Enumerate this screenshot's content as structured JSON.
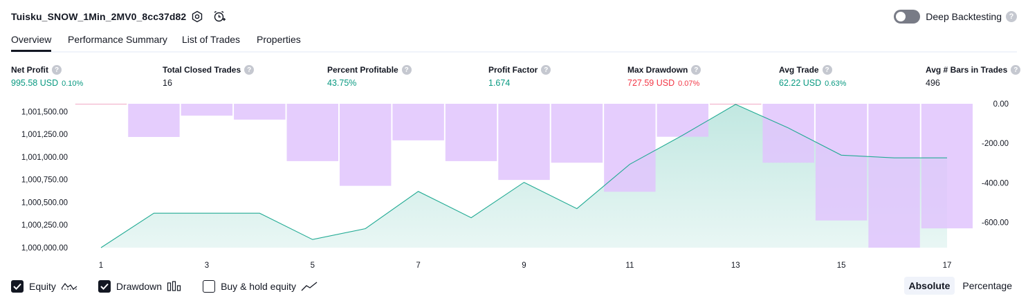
{
  "header": {
    "title": "Tuisku_SNOW_1Min_2MV0_8cc37d82",
    "icons": [
      "settings-icon",
      "alert-add-icon"
    ],
    "deep_backtesting_label": "Deep Backtesting",
    "deep_backtesting_on": false,
    "help_glyph": "?"
  },
  "tabs": [
    {
      "label": "Overview",
      "active": true
    },
    {
      "label": "Performance Summary",
      "active": false
    },
    {
      "label": "List of Trades",
      "active": false
    },
    {
      "label": "Properties",
      "active": false
    }
  ],
  "metrics": [
    {
      "label": "Net Profit",
      "value": "995.58 USD",
      "pct": "0.10%",
      "color": "#089981"
    },
    {
      "label": "Total Closed Trades",
      "value": "16",
      "pct": "",
      "color": "#131722"
    },
    {
      "label": "Percent Profitable",
      "value": "43.75%",
      "pct": "",
      "color": "#089981"
    },
    {
      "label": "Profit Factor",
      "value": "1.674",
      "pct": "",
      "color": "#089981"
    },
    {
      "label": "Max Drawdown",
      "value": "727.59 USD",
      "pct": "0.07%",
      "color": "#f23645"
    },
    {
      "label": "Avg Trade",
      "value": "62.22 USD",
      "pct": "0.63%",
      "color": "#089981"
    },
    {
      "label": "Avg # Bars in Trades",
      "value": "496",
      "pct": "",
      "color": "#131722"
    }
  ],
  "chart_data": {
    "type": "area",
    "x": [
      1,
      2,
      3,
      4,
      5,
      6,
      7,
      8,
      9,
      10,
      11,
      12,
      13,
      14,
      15,
      16,
      17
    ],
    "x_ticks": [
      "1",
      "3",
      "5",
      "7",
      "9",
      "11",
      "13",
      "15",
      "17"
    ],
    "xlim": [
      1,
      17
    ],
    "series": [
      {
        "name": "Equity",
        "axis": "left",
        "style": "line-area",
        "color": "#22ab94",
        "values": [
          1000000,
          1000380,
          1000380,
          1000380,
          1000090,
          1000210,
          1000620,
          1000330,
          1000720,
          1000430,
          1000920,
          1001240,
          1001580,
          1001320,
          1001020,
          1000990,
          1000990
        ]
      },
      {
        "name": "Drawdown",
        "axis": "right",
        "style": "bar",
        "color": "#e1c4fd",
        "values": [
          0,
          -168,
          -60,
          -80,
          -290,
          -415,
          -185,
          -290,
          -385,
          -298,
          -445,
          -167,
          0,
          -298,
          -590,
          -727.59,
          -630
        ]
      }
    ],
    "left_axis": {
      "ylim": [
        1000000,
        1001587
      ],
      "ticks": [
        "1,000,000.00",
        "1,000,250.00",
        "1,000,500.00",
        "1,000,750.00",
        "1,001,000.00",
        "1,001,250.00",
        "1,001,500.00"
      ],
      "tick_values": [
        1000000,
        1000250,
        1000500,
        1000750,
        1001000,
        1001250,
        1001500
      ]
    },
    "right_axis": {
      "ylim": [
        0,
        -727.59
      ],
      "ticks": [
        "0.00",
        "-200.00",
        "-400.00",
        "-600.00"
      ],
      "tick_values": [
        0,
        -200,
        -400,
        -600
      ]
    },
    "legend": "bottom-left",
    "grid": false
  },
  "legend": [
    {
      "label": "Equity",
      "checked": true,
      "icon": "equity-line-icon"
    },
    {
      "label": "Drawdown",
      "checked": true,
      "icon": "drawdown-bars-icon"
    },
    {
      "label": "Buy & hold equity",
      "checked": false,
      "icon": "buy-hold-line-icon"
    }
  ],
  "mode": {
    "absolute": "Absolute",
    "percentage": "Percentage",
    "active": "absolute"
  }
}
